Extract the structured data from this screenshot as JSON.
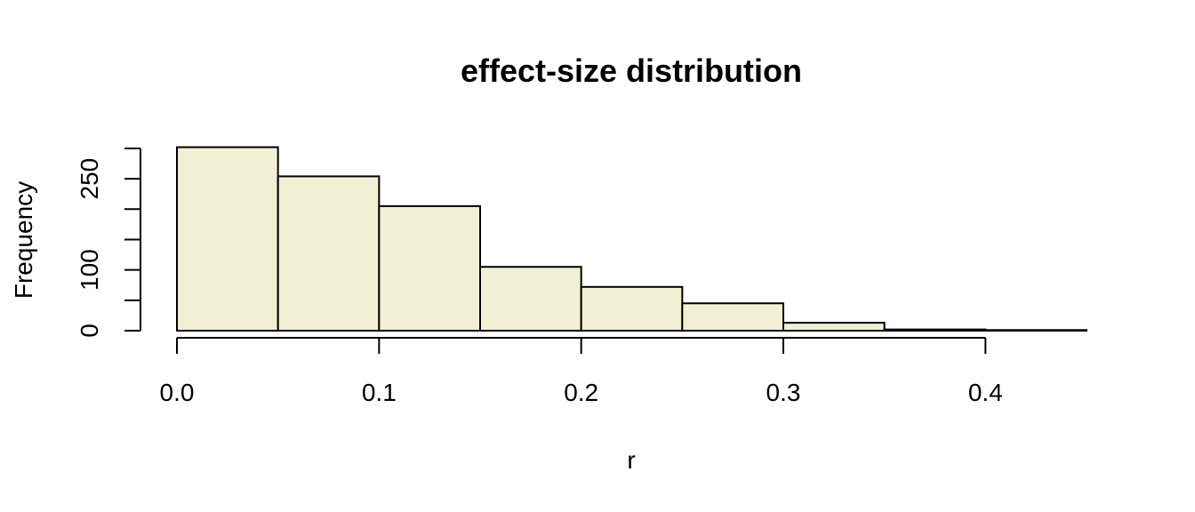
{
  "chart_data": {
    "type": "bar",
    "title": "effect-size distribution",
    "xlabel": "r",
    "ylabel": "Frequency",
    "bin_edges": [
      0.0,
      0.05,
      0.1,
      0.15,
      0.2,
      0.25,
      0.3,
      0.35,
      0.4,
      0.45
    ],
    "values": [
      302,
      254,
      205,
      105,
      72,
      45,
      13,
      2,
      1
    ],
    "xlim": [
      0.0,
      0.45
    ],
    "ylim": [
      0,
      300
    ],
    "x_ticks": [
      0.0,
      0.1,
      0.2,
      0.3,
      0.4
    ],
    "x_tick_labels": [
      "0.0",
      "0.1",
      "0.2",
      "0.3",
      "0.4"
    ],
    "y_ticks": [
      0,
      50,
      100,
      150,
      200,
      250,
      300
    ],
    "y_tick_labels": [
      "0",
      "",
      "100",
      "",
      "",
      "250",
      ""
    ],
    "bar_color": "#f2f0d4",
    "grid": false,
    "legend": "none"
  }
}
